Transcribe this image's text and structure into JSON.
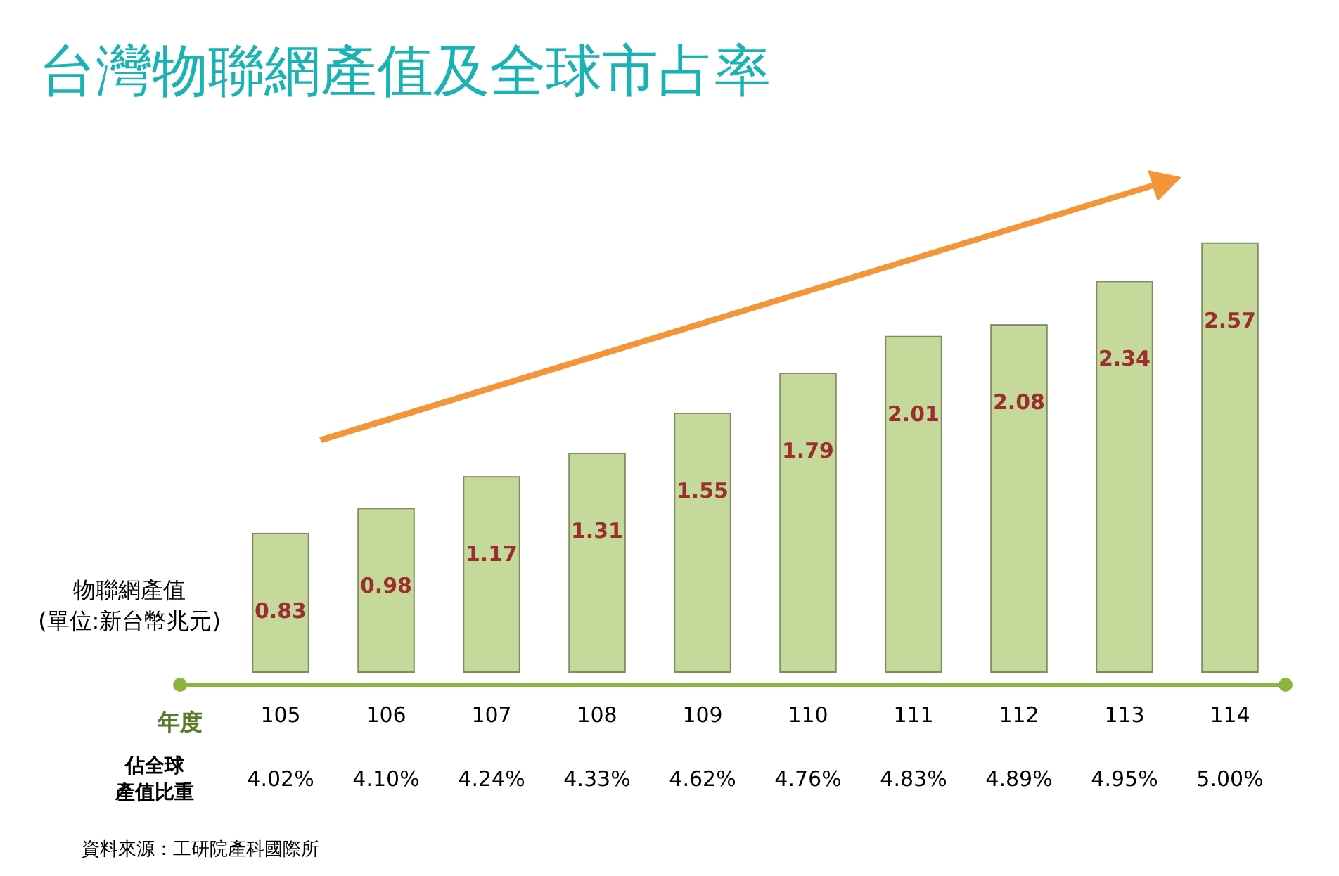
{
  "chart_data": {
    "type": "bar",
    "title": "台灣物聯網產值及全球市占率",
    "ylabel": "物聯網產值\n(單位:新台幣兆元)",
    "xlabel": "年度",
    "categories": [
      "105",
      "106",
      "107",
      "108",
      "109",
      "110",
      "111",
      "112",
      "113",
      "114"
    ],
    "values": [
      0.83,
      0.98,
      1.17,
      1.31,
      1.55,
      1.79,
      2.01,
      2.08,
      2.34,
      2.57
    ],
    "color": "#c5d99a",
    "data_labels": true,
    "annotations": [
      "佔全球產值比重",
      "4.02%",
      "4.10%",
      "4.24%",
      "4.33%",
      "4.62%",
      "4.76%",
      "4.83%",
      "4.89%",
      "4.95%",
      "5.00%",
      "資料來源：工研院產科國際所"
    ]
  }
}
